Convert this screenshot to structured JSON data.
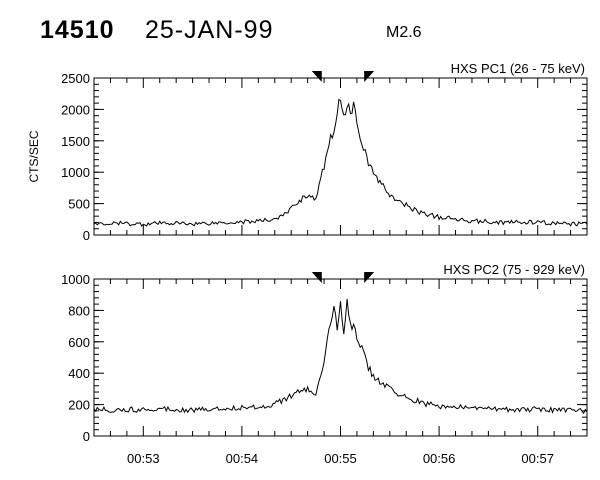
{
  "header": {
    "event_id": "14510",
    "date": "25-JAN-99",
    "flare_class": "M2.6"
  },
  "chart_data": [
    {
      "type": "line",
      "title": "HXS PC1 (26 - 75 keV)",
      "ylabel": "CTS/SEC",
      "ylim": [
        0,
        2500
      ],
      "yticks": [
        0,
        500,
        1000,
        1500,
        2000,
        2500
      ],
      "ytick_labels": [
        "0",
        "500",
        "1000",
        "1500",
        "2000",
        "2500"
      ],
      "xlim": [
        "00:52:30",
        "00:57:30"
      ],
      "xticks": [
        "00:53:00",
        "00:54:00",
        "00:55:00",
        "00:56:00",
        "00:57:00"
      ],
      "xtick_labels": [
        "",
        "",
        "",
        "",
        ""
      ],
      "markers": [
        "00:54:48",
        "00:55:15"
      ],
      "grid": false,
      "series": [
        {
          "x": [
            "00:52:30",
            "00:52:45",
            "00:53:00",
            "00:53:15",
            "00:53:30",
            "00:53:45",
            "00:54:00",
            "00:54:15",
            "00:54:25",
            "00:54:35",
            "00:54:40",
            "00:54:45",
            "00:54:50",
            "00:54:53",
            "00:54:56",
            "00:54:58",
            "00:55:00",
            "00:55:02",
            "00:55:04",
            "00:55:06",
            "00:55:08",
            "00:55:12",
            "00:55:16",
            "00:55:20",
            "00:55:25",
            "00:55:30",
            "00:55:35",
            "00:55:40",
            "00:55:45",
            "00:55:50",
            "00:56:00",
            "00:56:15",
            "00:56:30",
            "00:56:45",
            "00:57:00",
            "00:57:15",
            "00:57:30"
          ],
          "y": [
            170,
            185,
            175,
            190,
            180,
            195,
            210,
            230,
            300,
            550,
            640,
            560,
            1100,
            1450,
            1700,
            1950,
            2200,
            1900,
            2100,
            1950,
            2050,
            1600,
            1200,
            1000,
            800,
            650,
            520,
            480,
            400,
            350,
            280,
            240,
            210,
            200,
            200,
            180,
            170
          ]
        }
      ]
    },
    {
      "type": "line",
      "title": "HXS PC2 (75 - 929 keV)",
      "ylabel": "",
      "ylim": [
        0,
        1000
      ],
      "yticks": [
        0,
        200,
        400,
        600,
        800,
        1000
      ],
      "ytick_labels": [
        "0",
        "200",
        "400",
        "600",
        "800",
        "1000"
      ],
      "xlim": [
        "00:52:30",
        "00:57:30"
      ],
      "xticks": [
        "00:53:00",
        "00:54:00",
        "00:55:00",
        "00:56:00",
        "00:57:00"
      ],
      "xtick_labels": [
        "00:53",
        "00:54",
        "00:55",
        "00:56",
        "00:57"
      ],
      "markers": [
        "00:54:48",
        "00:55:15"
      ],
      "grid": false,
      "series": [
        {
          "x": [
            "00:52:30",
            "00:52:45",
            "00:53:00",
            "00:53:15",
            "00:53:30",
            "00:53:45",
            "00:54:00",
            "00:54:15",
            "00:54:25",
            "00:54:35",
            "00:54:40",
            "00:54:45",
            "00:54:50",
            "00:54:53",
            "00:54:56",
            "00:54:58",
            "00:55:00",
            "00:55:02",
            "00:55:04",
            "00:55:06",
            "00:55:08",
            "00:55:12",
            "00:55:16",
            "00:55:20",
            "00:55:25",
            "00:55:30",
            "00:55:35",
            "00:55:40",
            "00:55:45",
            "00:55:50",
            "00:56:00",
            "00:56:15",
            "00:56:30",
            "00:56:45",
            "00:57:00",
            "00:57:15",
            "00:57:30"
          ],
          "y": [
            170,
            165,
            170,
            175,
            165,
            175,
            180,
            190,
            230,
            280,
            300,
            260,
            450,
            680,
            800,
            700,
            860,
            640,
            880,
            720,
            700,
            580,
            460,
            380,
            340,
            300,
            260,
            250,
            230,
            210,
            190,
            180,
            175,
            170,
            170,
            165,
            160
          ]
        }
      ]
    }
  ]
}
